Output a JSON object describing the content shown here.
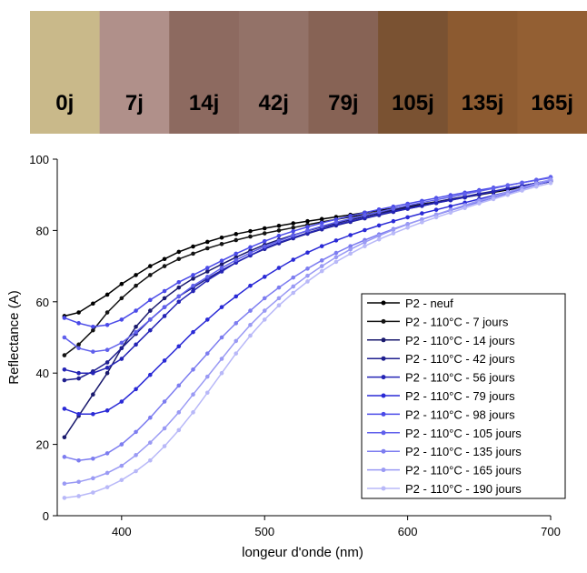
{
  "swatches": [
    {
      "label": "0j",
      "color": "#c9b98a"
    },
    {
      "label": "7j",
      "color": "#b0908a"
    },
    {
      "label": "14j",
      "color": "#8d6a60"
    },
    {
      "label": "42j",
      "color": "#937268"
    },
    {
      "label": "79j",
      "color": "#876355"
    },
    {
      "label": "105j",
      "color": "#7a5232"
    },
    {
      "label": "135j",
      "color": "#8c5a30"
    },
    {
      "label": "165j",
      "color": "#935f33"
    }
  ],
  "chart_data": {
    "type": "line",
    "xlabel": "longeur d'onde (nm)",
    "ylabel": "Reflectance (A)",
    "x": [
      360,
      370,
      380,
      390,
      400,
      410,
      420,
      430,
      440,
      450,
      460,
      470,
      480,
      490,
      500,
      510,
      520,
      530,
      540,
      550,
      560,
      570,
      580,
      590,
      600,
      610,
      620,
      630,
      640,
      650,
      660,
      670,
      680,
      690,
      700
    ],
    "xlim": [
      355,
      700
    ],
    "xticks": [
      400,
      500,
      600,
      700
    ],
    "ylim": [
      0,
      100
    ],
    "yticks": [
      0,
      20,
      40,
      60,
      80,
      100
    ],
    "legend": "lower right",
    "series": [
      {
        "name": "P2 - neuf",
        "color": "#000000",
        "values": [
          56,
          57,
          59.5,
          62,
          65,
          67.5,
          70,
          72,
          74,
          75.5,
          76.8,
          78,
          79,
          79.8,
          80.6,
          81.3,
          82,
          82.6,
          83.2,
          83.8,
          84.4,
          85,
          85.6,
          86.2,
          86.8,
          87.4,
          88,
          88.6,
          89.3,
          90,
          90.7,
          91.4,
          92.1,
          92.9,
          93.7
        ]
      },
      {
        "name": "P2 - 110°C - 7 jours",
        "color": "#141414",
        "values": [
          45,
          48,
          52,
          57,
          61,
          64.5,
          67.5,
          70,
          72,
          73.5,
          75,
          76.2,
          77.3,
          78.3,
          79.2,
          80,
          80.8,
          81.6,
          82.4,
          83.1,
          83.8,
          84.5,
          85.2,
          85.9,
          86.6,
          87.3,
          88,
          88.7,
          89.4,
          90.1,
          90.9,
          91.7,
          92.5,
          93.3,
          94.1
        ]
      },
      {
        "name": "P2 - 110°C - 14 jours",
        "color": "#1a1a6e",
        "values": [
          22,
          28,
          34,
          40,
          47,
          53,
          57.5,
          61,
          64,
          66.5,
          68.5,
          70.5,
          72.5,
          74.3,
          76,
          77.4,
          78.7,
          79.9,
          81,
          82,
          83,
          83.9,
          84.8,
          85.6,
          86.4,
          87.2,
          88,
          88.8,
          89.5,
          90.3,
          91,
          91.8,
          92.5,
          93.3,
          94
        ]
      },
      {
        "name": "P2 - 110°C - 42 jours",
        "color": "#1f1f8f",
        "values": [
          38,
          38.5,
          40.5,
          43,
          47,
          51,
          55,
          58.5,
          61.5,
          64,
          66.5,
          68.8,
          71,
          73,
          74.8,
          76.4,
          77.8,
          79.1,
          80.3,
          81.4,
          82.4,
          83.4,
          84.3,
          85.2,
          86.1,
          86.9,
          87.7,
          88.5,
          89.3,
          90.1,
          90.9,
          91.7,
          92.5,
          93.3,
          94.1
        ]
      },
      {
        "name": "P2 - 110°C - 56 jours",
        "color": "#2424b5",
        "values": [
          41,
          40,
          40,
          41.5,
          44,
          48,
          52,
          56,
          60,
          63,
          66,
          68.5,
          71,
          73,
          75,
          76.6,
          78,
          79.3,
          80.5,
          81.6,
          82.6,
          83.5,
          84.4,
          85.3,
          86.1,
          86.9,
          87.7,
          88.5,
          89.3,
          90.1,
          90.9,
          91.7,
          92.5,
          93.3,
          94.1
        ]
      },
      {
        "name": "P2 - 110°C - 79 jours",
        "color": "#2a2ad6",
        "values": [
          30,
          28.5,
          28.5,
          29.5,
          32,
          35.5,
          39.5,
          43.5,
          47.5,
          51.5,
          55,
          58.5,
          61.5,
          64.5,
          67,
          69.5,
          71.8,
          73.8,
          75.6,
          77.2,
          78.7,
          80.1,
          81.4,
          82.6,
          83.7,
          84.8,
          85.8,
          86.8,
          87.8,
          88.8,
          89.8,
          90.8,
          91.8,
          92.8,
          93.8
        ]
      },
      {
        "name": "P2 - 110°C - 98 jours",
        "color": "#4a4ae8",
        "values": [
          55.5,
          54,
          53,
          53.5,
          55,
          57.5,
          60.5,
          63,
          65.5,
          67.5,
          69.5,
          71.5,
          73.5,
          75.3,
          77,
          78.5,
          79.8,
          81,
          82.1,
          83.1,
          84.1,
          85,
          85.9,
          86.7,
          87.5,
          88.3,
          89.1,
          89.9,
          90.6,
          91.3,
          92,
          92.7,
          93.4,
          94.1,
          94.8
        ]
      },
      {
        "name": "P2 - 110°C - 105 jours",
        "color": "#6060ec",
        "values": [
          50,
          47,
          46,
          46.5,
          48.5,
          51.5,
          55,
          58.5,
          61.5,
          64.5,
          67,
          69.5,
          71.7,
          73.7,
          75.5,
          77.1,
          78.6,
          80,
          81.2,
          82.3,
          83.3,
          84.3,
          85.2,
          86.1,
          87,
          87.8,
          88.6,
          89.4,
          90.2,
          91,
          91.8,
          92.6,
          93.4,
          94.2,
          95
        ]
      },
      {
        "name": "P2 - 110°C - 135 jours",
        "color": "#7d7df0",
        "values": [
          16.5,
          15.5,
          16,
          17.5,
          20,
          23.5,
          27.5,
          32,
          36.5,
          41,
          45.5,
          50,
          54,
          57.5,
          61,
          64,
          66.8,
          69.3,
          71.6,
          73.7,
          75.6,
          77.3,
          78.9,
          80.4,
          81.8,
          83.1,
          84.4,
          85.6,
          86.8,
          88,
          89.2,
          90.4,
          91.6,
          92.8,
          94
        ]
      },
      {
        "name": "P2 - 110°C - 165 jours",
        "color": "#9a9af4",
        "values": [
          9,
          9.5,
          10.5,
          12,
          14,
          17,
          20.5,
          24.5,
          29,
          34,
          39,
          44,
          49,
          53.5,
          57.5,
          61,
          64.3,
          67.3,
          70,
          72.5,
          74.7,
          76.7,
          78.5,
          80.2,
          81.7,
          83.1,
          84.5,
          85.8,
          87.1,
          88.4,
          89.6,
          90.8,
          92,
          93.2,
          94.3
        ]
      },
      {
        "name": "P2 - 110°C - 190 jours",
        "color": "#b8b8f8",
        "values": [
          5,
          5.5,
          6.5,
          8,
          10,
          12.5,
          15.5,
          19.5,
          24,
          29,
          34.5,
          40,
          45.5,
          50.5,
          55,
          59,
          62.5,
          65.7,
          68.6,
          71.2,
          73.5,
          75.6,
          77.5,
          79.2,
          80.8,
          82.3,
          83.7,
          85,
          86.3,
          87.6,
          88.8,
          90,
          91.2,
          92.3,
          93.3
        ]
      }
    ]
  }
}
